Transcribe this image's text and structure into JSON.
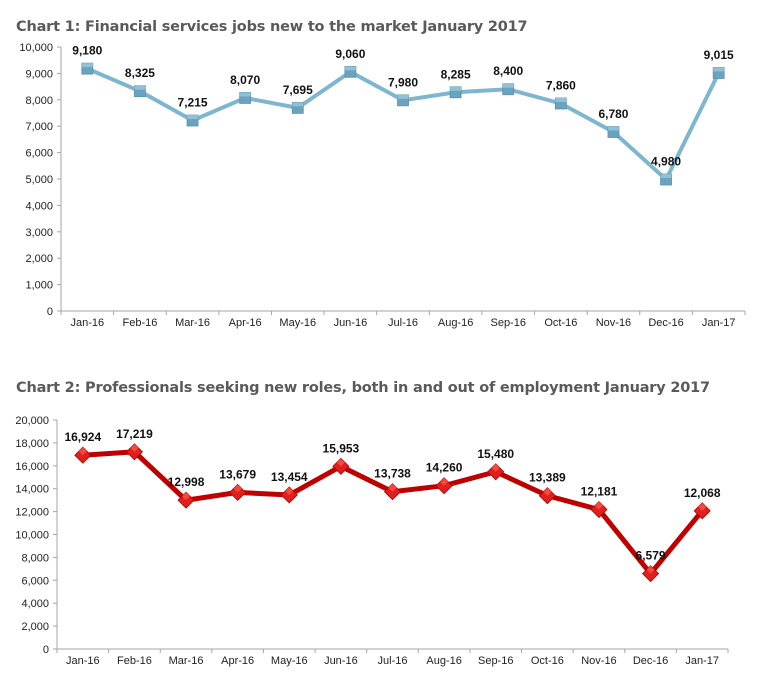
{
  "chart_data": [
    {
      "type": "line",
      "title": "Chart 1: Financial services jobs new to the market January 2017",
      "xlabel": "",
      "ylabel": "",
      "categories": [
        "Jan-16",
        "Feb-16",
        "Mar-16",
        "Apr-16",
        "May-16",
        "Jun-16",
        "Jul-16",
        "Aug-16",
        "Sep-16",
        "Oct-16",
        "Nov-16",
        "Dec-16",
        "Jan-17"
      ],
      "series": [
        {
          "name": "Financial services jobs new to the market",
          "values": [
            9180,
            8325,
            7215,
            8070,
            7695,
            9060,
            7980,
            8285,
            8400,
            7860,
            6780,
            4980,
            9015
          ],
          "color": "#7fb6cf",
          "marker": "square",
          "marker_color": "#6aa3bd"
        }
      ],
      "data_labels": [
        "9,180",
        "8,325",
        "7,215",
        "8,070",
        "7,695",
        "9,060",
        "7,980",
        "8,285",
        "8,400",
        "7,860",
        "6,780",
        "4,980",
        "9,015"
      ],
      "ylim": [
        0,
        10000
      ],
      "yticks": [
        0,
        1000,
        2000,
        3000,
        4000,
        5000,
        6000,
        7000,
        8000,
        9000,
        10000
      ],
      "ytick_labels": [
        "0",
        "1,000",
        "2,000",
        "3,000",
        "4,000",
        "5,000",
        "6,000",
        "7,000",
        "8,000",
        "9,000",
        "10,000"
      ],
      "grid": false,
      "legend": "none"
    },
    {
      "type": "line",
      "title": "Chart 2: Professionals seeking new roles, both in and out of employment January 2017",
      "xlabel": "",
      "ylabel": "",
      "categories": [
        "Jan-16",
        "Feb-16",
        "Mar-16",
        "Apr-16",
        "May-16",
        "Jun-16",
        "Jul-16",
        "Aug-16",
        "Sep-16",
        "Oct-16",
        "Nov-16",
        "Dec-16",
        "Jan-17"
      ],
      "series": [
        {
          "name": "Professionals seeking new roles",
          "values": [
            16924,
            17219,
            12998,
            13679,
            13454,
            15953,
            13738,
            14260,
            15480,
            13389,
            12181,
            6579,
            12068
          ],
          "color": "#c00000",
          "marker": "diamond",
          "marker_color": "#e0201c"
        }
      ],
      "data_labels": [
        "16,924",
        "17,219",
        "12,998",
        "13,679",
        "13,454",
        "15,953",
        "13,738",
        "14,260",
        "15,480",
        "13,389",
        "12,181",
        "6,579",
        "12,068"
      ],
      "ylim": [
        0,
        20000
      ],
      "yticks": [
        0,
        2000,
        4000,
        6000,
        8000,
        10000,
        12000,
        14000,
        16000,
        18000,
        20000
      ],
      "ytick_labels": [
        "0",
        "2,000",
        "4,000",
        "6,000",
        "8,000",
        "10,000",
        "12,000",
        "14,000",
        "16,000",
        "18,000",
        "20,000"
      ],
      "grid": false,
      "legend": "none"
    }
  ]
}
